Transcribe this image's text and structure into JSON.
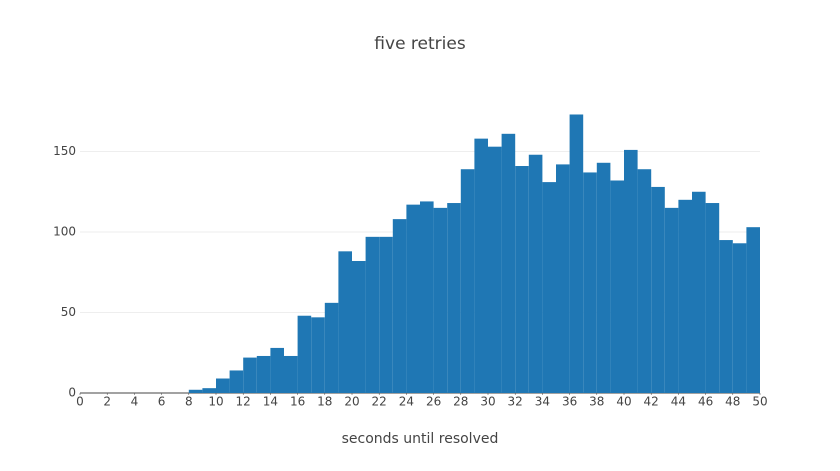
{
  "chart_data": {
    "type": "histogram",
    "title": "five retries",
    "x_label": "seconds until resolved",
    "bins": [
      0,
      1,
      2,
      3,
      4,
      5,
      6,
      7,
      8,
      9,
      10,
      11,
      12,
      13,
      14,
      15,
      16,
      17,
      18,
      19,
      20,
      21,
      22,
      23,
      24,
      25,
      26,
      27,
      28,
      29,
      30,
      31,
      32,
      33,
      34,
      35,
      36,
      37,
      38,
      39,
      40,
      41,
      42,
      43,
      44,
      45,
      46,
      47,
      48,
      49,
      50
    ],
    "values": [
      0,
      0,
      0,
      0,
      0,
      0,
      0,
      0,
      2,
      3,
      9,
      14,
      22,
      23,
      28,
      23,
      48,
      47,
      56,
      88,
      82,
      97,
      97,
      108,
      117,
      119,
      115,
      118,
      139,
      158,
      153,
      161,
      141,
      148,
      131,
      142,
      173,
      137,
      143,
      132,
      151,
      139,
      128,
      115,
      120,
      125,
      118,
      95,
      93,
      103
    ],
    "color": "#1f77b4",
    "xlim": [
      0,
      50
    ],
    "xticks": [
      0,
      2,
      4,
      6,
      8,
      10,
      12,
      14,
      16,
      18,
      20,
      22,
      24,
      26,
      28,
      30,
      32,
      34,
      36,
      38,
      40,
      42,
      44,
      46,
      48,
      50
    ],
    "ylim": [
      0,
      182
    ],
    "yticks": [
      0,
      50,
      100,
      150
    ],
    "grid": true
  }
}
